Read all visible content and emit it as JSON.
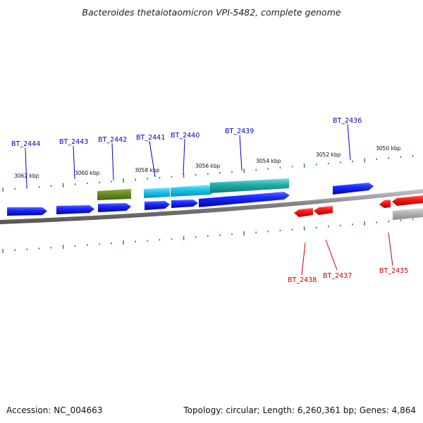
{
  "title": "Bacteroides thetaiotaomicron VPI-5482, complete genome",
  "footer": {
    "accession": "Accession: NC_004663",
    "summary": "Topology: circular; Length: 6,260,361 bp; Genes: 4,864"
  },
  "scale_labels": [
    "3062 kbp",
    "3060 kbp",
    "3058 kbp",
    "3056 kbp",
    "3054 kbp",
    "3052 kbp",
    "3050 kbp"
  ],
  "genes": [
    {
      "label": "BT_2444",
      "strand": "forward",
      "color": "#0000cc"
    },
    {
      "label": "BT_2443",
      "strand": "forward",
      "color": "#0000cc"
    },
    {
      "label": "BT_2442",
      "strand": "forward",
      "color": "#0000cc"
    },
    {
      "label": "BT_2441",
      "strand": "forward",
      "color": "#0000cc"
    },
    {
      "label": "BT_2440",
      "strand": "forward",
      "color": "#0000cc"
    },
    {
      "label": "BT_2439",
      "strand": "forward",
      "color": "#0000cc"
    },
    {
      "label": "BT_2436",
      "strand": "forward",
      "color": "#0000cc"
    },
    {
      "label": "BT_2438",
      "strand": "reverse",
      "color": "#cc0000"
    },
    {
      "label": "BT_2437",
      "strand": "reverse",
      "color": "#cc0000"
    },
    {
      "label": "BT_2435",
      "strand": "reverse",
      "color": "#cc0000"
    }
  ],
  "colors": {
    "forward_gene": "#0000ee",
    "reverse_gene": "#ee0000",
    "forward_label": "#0000cc",
    "reverse_label": "#cc0000",
    "olive_feature": "#6b8e23",
    "cyan_feature": "#1ec8e8",
    "teal_feature": "#20b2aa",
    "grey_feature": "#aaaaaa",
    "backbone": "#7a7a7a",
    "ticks": "#228b22"
  }
}
